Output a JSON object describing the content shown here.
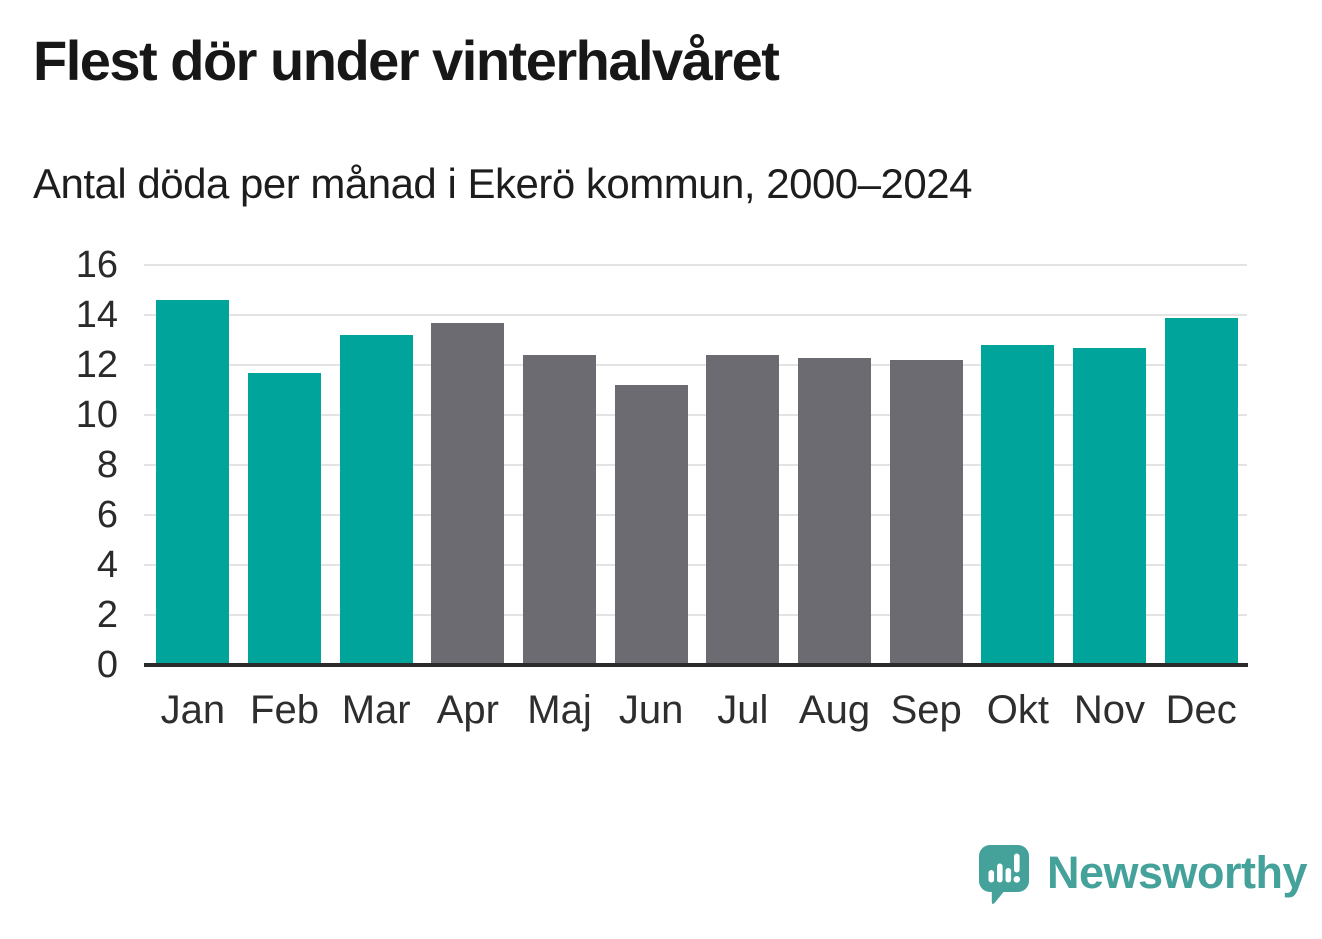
{
  "header": {
    "title": "Flest dör under vinterhalvåret",
    "subtitle": "Antal döda per månad i Ekerö kommun, 2000–2024"
  },
  "chart_data": {
    "type": "bar",
    "title": "Flest dör under vinterhalvåret",
    "subtitle": "Antal döda per månad i Ekerö kommun, 2000–2024",
    "categories": [
      "Jan",
      "Feb",
      "Mar",
      "Apr",
      "Maj",
      "Jun",
      "Jul",
      "Aug",
      "Sep",
      "Okt",
      "Nov",
      "Dec"
    ],
    "values": [
      14.6,
      11.7,
      13.2,
      13.7,
      12.4,
      11.2,
      12.4,
      12.3,
      12.2,
      12.8,
      12.7,
      13.9
    ],
    "bar_color_keys": [
      "teal",
      "teal",
      "teal",
      "gray",
      "gray",
      "gray",
      "gray",
      "gray",
      "gray",
      "teal",
      "teal",
      "teal"
    ],
    "palette": {
      "teal": "#00a49a",
      "gray": "#6c6b71"
    },
    "y_ticks": [
      0,
      2,
      4,
      6,
      8,
      10,
      12,
      14,
      16
    ],
    "ylim": [
      0,
      16
    ],
    "grid": true,
    "gridline_color": "#e3e3e3",
    "axis_line_color": "#2b2b2b",
    "xlabel": "",
    "ylabel": "",
    "legend": "none"
  },
  "footer": {
    "brand": "Newsworthy",
    "brand_color": "#45a29b"
  }
}
